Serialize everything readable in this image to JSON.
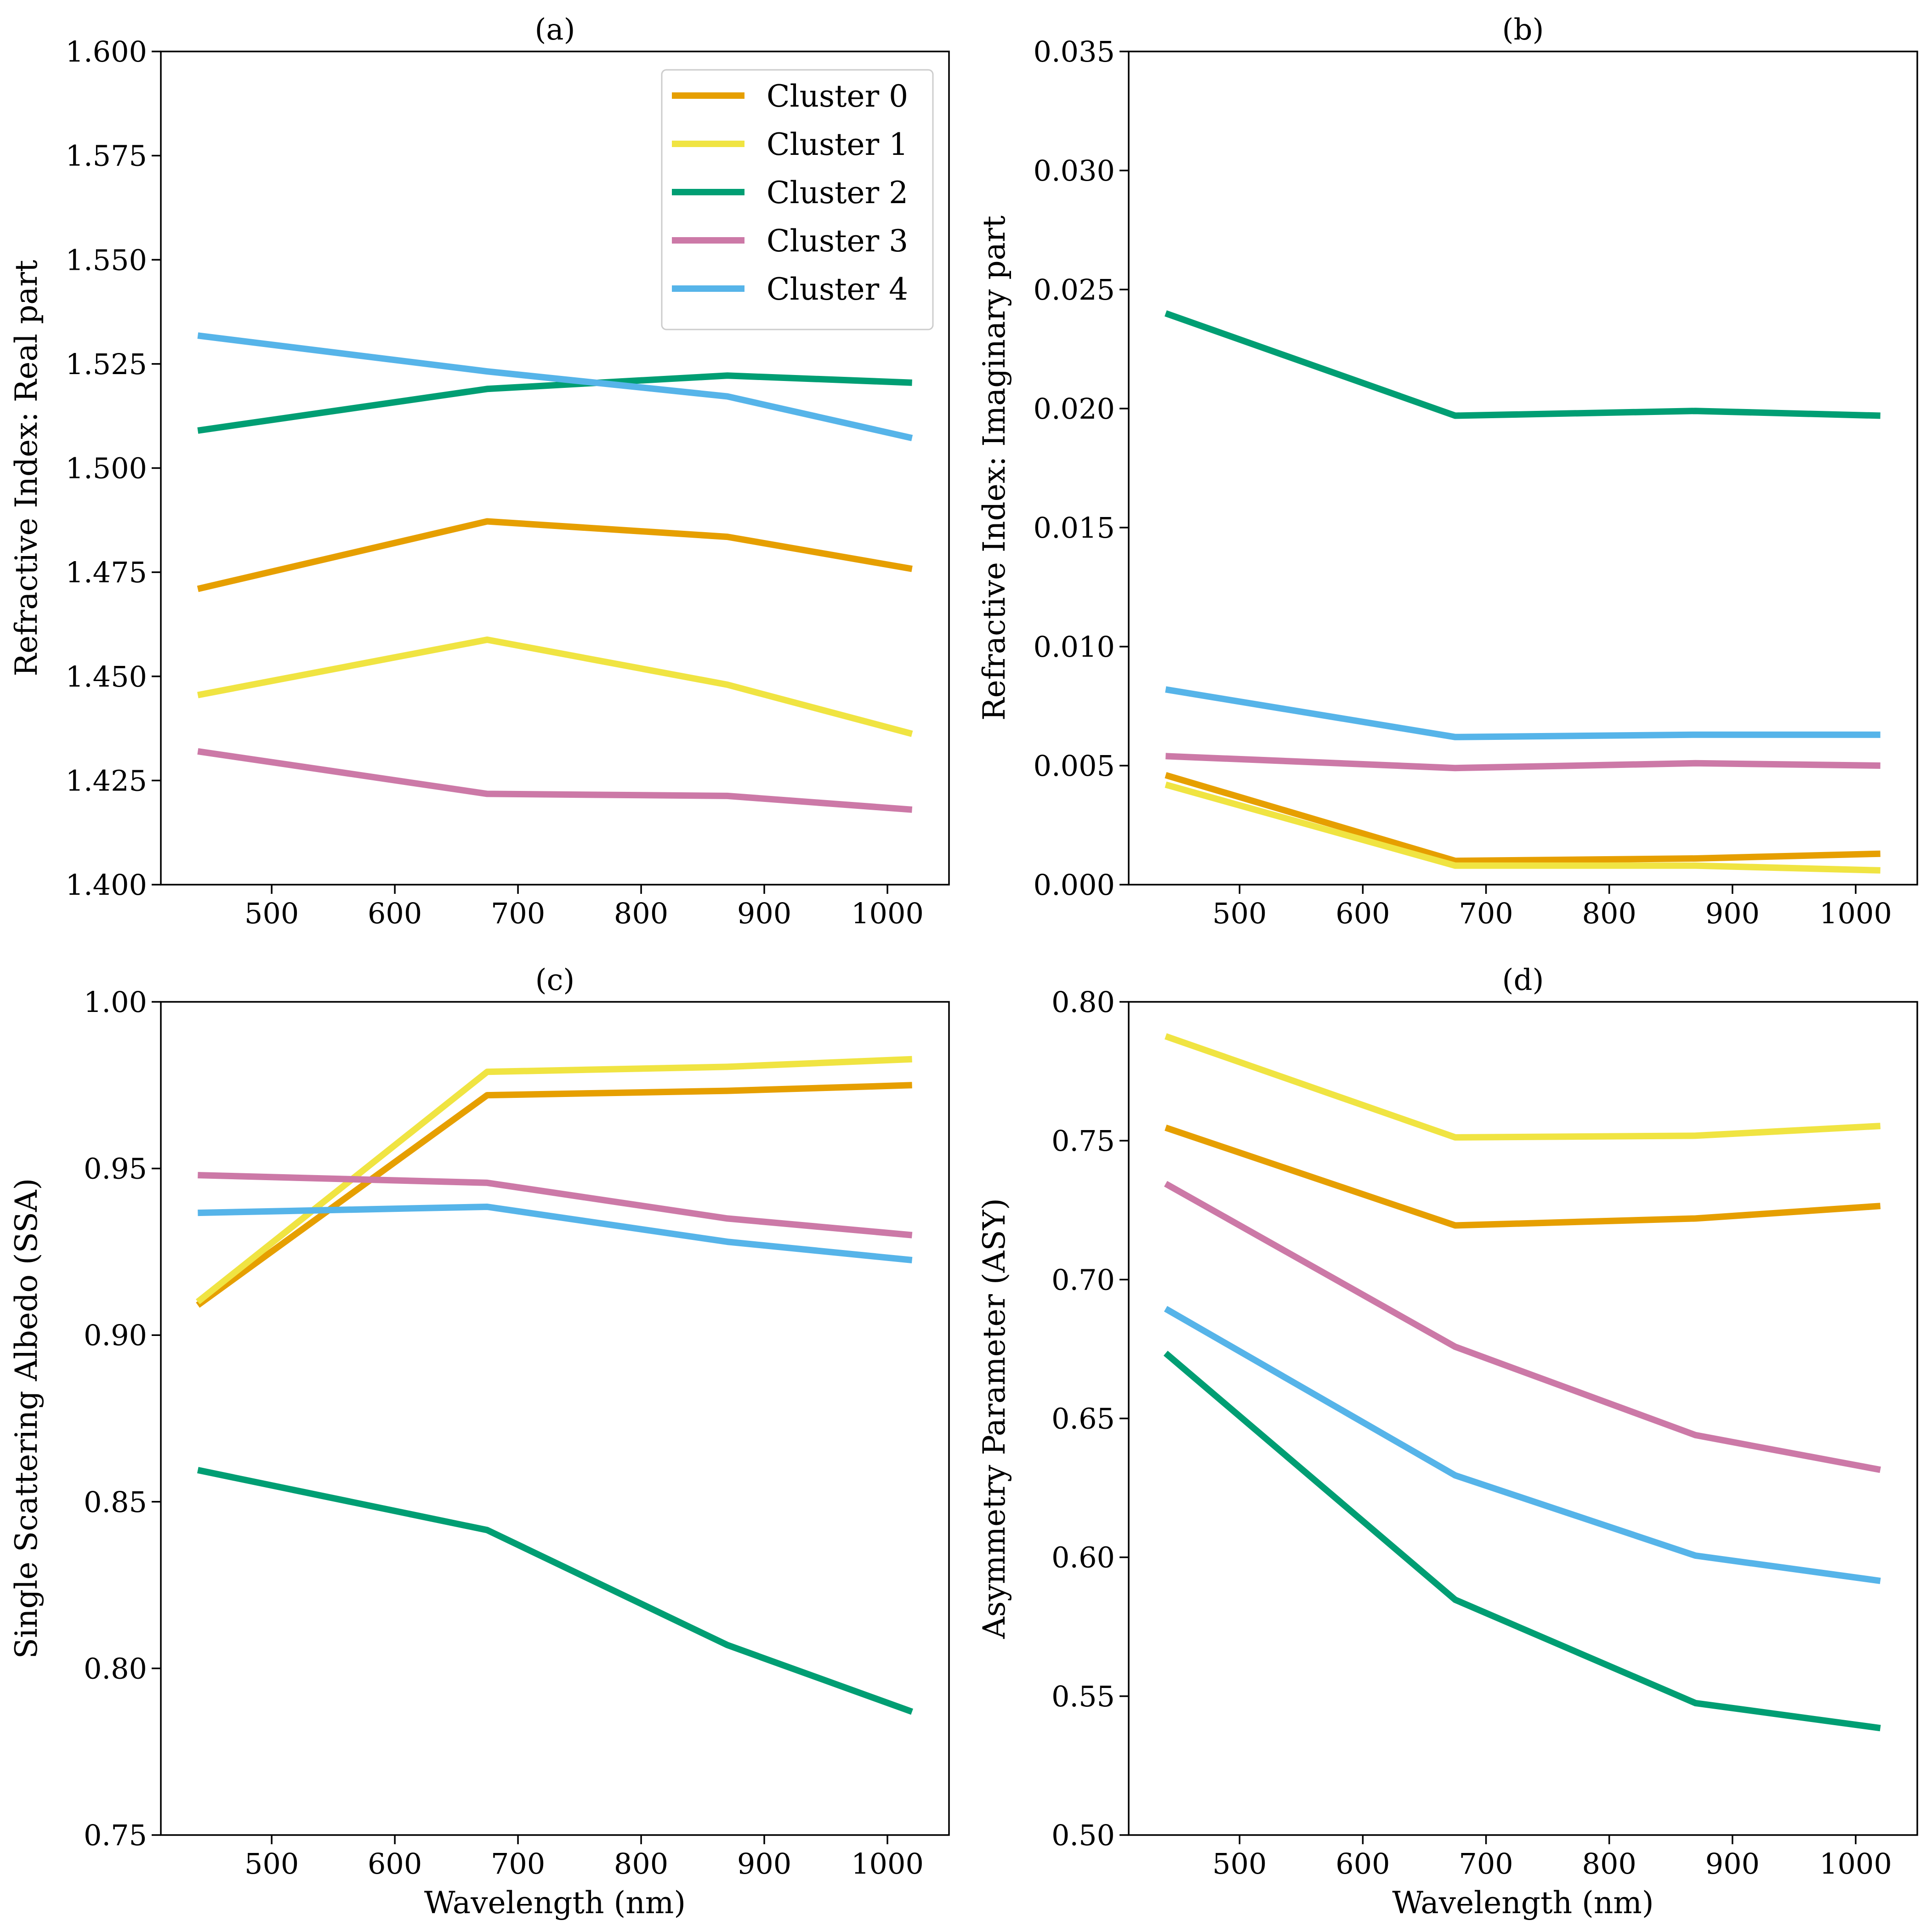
{
  "colors": {
    "cluster_0": "#E69F00",
    "cluster_1": "#F0E442",
    "cluster_2": "#009E73",
    "cluster_3": "#CC79A7",
    "cluster_4": "#56B4E9"
  },
  "chart_data": [
    {
      "type": "line",
      "title": "(a)",
      "xlabel": "",
      "ylabel": "Refractive Index: Real part",
      "xlim": [
        410,
        1050
      ],
      "ylim": [
        1.4,
        1.6
      ],
      "xticks": [
        500,
        600,
        700,
        800,
        900,
        1000
      ],
      "yticks": [
        "1.400",
        "1.425",
        "1.450",
        "1.475",
        "1.500",
        "1.525",
        "1.550",
        "1.575",
        "1.600"
      ],
      "legend": "top-right",
      "x": [
        440,
        675,
        870,
        1020
      ],
      "series": [
        {
          "name": "Cluster 0",
          "color": "#E69F00",
          "values": [
            1.471,
            1.4872,
            1.4835,
            1.4758
          ]
        },
        {
          "name": "Cluster 1",
          "color": "#F0E442",
          "values": [
            1.4455,
            1.4588,
            1.448,
            1.4362
          ]
        },
        {
          "name": "Cluster 2",
          "color": "#009E73",
          "values": [
            1.509,
            1.519,
            1.5222,
            1.5205
          ]
        },
        {
          "name": "Cluster 3",
          "color": "#CC79A7",
          "values": [
            1.432,
            1.4218,
            1.4213,
            1.418
          ]
        },
        {
          "name": "Cluster 4",
          "color": "#56B4E9",
          "values": [
            1.5318,
            1.5232,
            1.5172,
            1.5072
          ]
        }
      ]
    },
    {
      "type": "line",
      "title": "(b)",
      "xlabel": "",
      "ylabel": "Refractive Index: Imaginary part",
      "xlim": [
        410,
        1050
      ],
      "ylim": [
        0.0,
        0.035
      ],
      "xticks": [
        500,
        600,
        700,
        800,
        900,
        1000
      ],
      "yticks": [
        "0.000",
        "0.005",
        "0.010",
        "0.015",
        "0.020",
        "0.025",
        "0.030",
        "0.035"
      ],
      "legend": "none",
      "x": [
        440,
        675,
        870,
        1020
      ],
      "series": [
        {
          "name": "Cluster 0",
          "color": "#E69F00",
          "values": [
            0.0046,
            0.001,
            0.0011,
            0.0013
          ]
        },
        {
          "name": "Cluster 1",
          "color": "#F0E442",
          "values": [
            0.0042,
            0.0008,
            0.0008,
            0.0006
          ]
        },
        {
          "name": "Cluster 2",
          "color": "#009E73",
          "values": [
            0.024,
            0.0197,
            0.0199,
            0.0197
          ]
        },
        {
          "name": "Cluster 3",
          "color": "#CC79A7",
          "values": [
            0.0054,
            0.0049,
            0.0051,
            0.005
          ]
        },
        {
          "name": "Cluster 4",
          "color": "#56B4E9",
          "values": [
            0.0082,
            0.0062,
            0.0063,
            0.0063
          ]
        }
      ]
    },
    {
      "type": "line",
      "title": "(c)",
      "xlabel": "Wavelength (nm)",
      "ylabel": "Single Scattering Albedo (SSA)",
      "xlim": [
        410,
        1050
      ],
      "ylim": [
        0.75,
        1.0
      ],
      "xticks": [
        500,
        600,
        700,
        800,
        900,
        1000
      ],
      "yticks": [
        "0.75",
        "0.80",
        "0.85",
        "0.90",
        "0.95",
        "1.00"
      ],
      "legend": "none",
      "x": [
        440,
        675,
        870,
        1020
      ],
      "series": [
        {
          "name": "Cluster 0",
          "color": "#E69F00",
          "values": [
            0.909,
            0.972,
            0.9733,
            0.975
          ]
        },
        {
          "name": "Cluster 1",
          "color": "#F0E442",
          "values": [
            0.91,
            0.979,
            0.9805,
            0.9828
          ]
        },
        {
          "name": "Cluster 2",
          "color": "#009E73",
          "values": [
            0.8595,
            0.8415,
            0.807,
            0.787
          ]
        },
        {
          "name": "Cluster 3",
          "color": "#CC79A7",
          "values": [
            0.948,
            0.9457,
            0.935,
            0.93
          ]
        },
        {
          "name": "Cluster 4",
          "color": "#56B4E9",
          "values": [
            0.9367,
            0.9385,
            0.928,
            0.9225
          ]
        }
      ]
    },
    {
      "type": "line",
      "title": "(d)",
      "xlabel": "Wavelength (nm)",
      "ylabel": "Asymmetry Parameter (ASY)",
      "xlim": [
        410,
        1050
      ],
      "ylim": [
        0.5,
        0.8
      ],
      "xticks": [
        500,
        600,
        700,
        800,
        900,
        1000
      ],
      "yticks": [
        "0.50",
        "0.55",
        "0.60",
        "0.65",
        "0.70",
        "0.75",
        "0.80"
      ],
      "legend": "none",
      "x": [
        440,
        675,
        870,
        1020
      ],
      "series": [
        {
          "name": "Cluster 0",
          "color": "#E69F00",
          "values": [
            0.7547,
            0.7195,
            0.722,
            0.7265
          ]
        },
        {
          "name": "Cluster 1",
          "color": "#F0E442",
          "values": [
            0.7876,
            0.7512,
            0.7518,
            0.7553
          ]
        },
        {
          "name": "Cluster 2",
          "color": "#009E73",
          "values": [
            0.6735,
            0.5847,
            0.5475,
            0.5385
          ]
        },
        {
          "name": "Cluster 3",
          "color": "#CC79A7",
          "values": [
            0.7345,
            0.6758,
            0.644,
            0.6315
          ]
        },
        {
          "name": "Cluster 4",
          "color": "#56B4E9",
          "values": [
            0.6895,
            0.6295,
            0.6006,
            0.5915
          ]
        }
      ]
    }
  ]
}
